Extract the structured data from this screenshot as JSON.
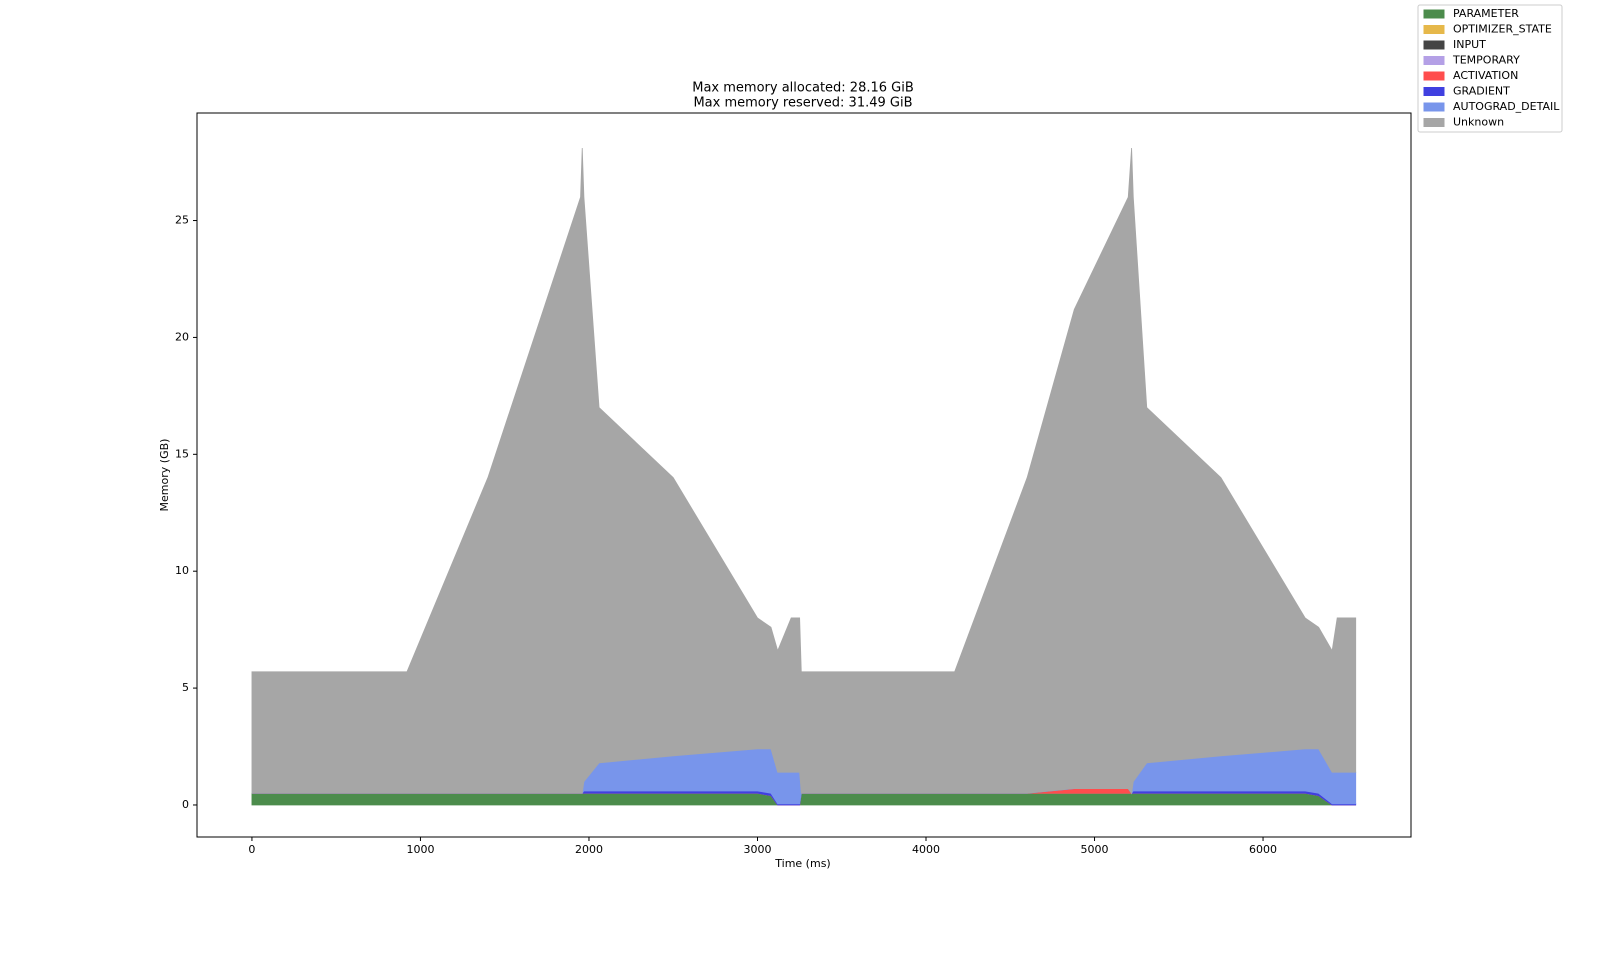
{
  "chart_data": {
    "type": "stacked-area",
    "title": "Max memory allocated: 28.16 GiB",
    "subtitle": "Max memory reserved: 31.49 GiB",
    "x_label": "Time (ms)",
    "y_label": "Memory (GB)",
    "x": [
      0,
      920,
      1400,
      1950,
      1960,
      1970,
      2060,
      2500,
      3000,
      3080,
      3120,
      3200,
      3250,
      3260,
      4170,
      4600,
      4880,
      5200,
      5220,
      5230,
      5310,
      5750,
      6250,
      6330,
      6410,
      6440,
      6550
    ],
    "series": [
      {
        "name": "PARAMETER",
        "color": "#4c8c4c",
        "values": [
          0.5,
          0.5,
          0.5,
          0.5,
          0.5,
          0.5,
          0.5,
          0.5,
          0.5,
          0.4,
          0,
          0,
          0,
          0.5,
          0.5,
          0.5,
          0.5,
          0.5,
          0.5,
          0.5,
          0.5,
          0.5,
          0.5,
          0.4,
          0,
          0,
          0
        ]
      },
      {
        "name": "OPTIMIZER_STATE",
        "color": "#e6b84a",
        "values": [
          0,
          0,
          0,
          0,
          0,
          0,
          0,
          0,
          0,
          0,
          0,
          0,
          0,
          0,
          0,
          0,
          0,
          0,
          0,
          0,
          0,
          0,
          0,
          0,
          0,
          0,
          0
        ]
      },
      {
        "name": "INPUT",
        "color": "#444444",
        "values": [
          0,
          0,
          0,
          0,
          0,
          0,
          0,
          0,
          0,
          0,
          0,
          0,
          0,
          0,
          0,
          0,
          0,
          0,
          0,
          0,
          0,
          0,
          0,
          0,
          0,
          0,
          0
        ]
      },
      {
        "name": "TEMPORARY",
        "color": "#b4a0e6",
        "values": [
          0,
          0,
          0,
          0,
          0,
          0,
          0,
          0,
          0,
          0,
          0,
          0,
          0,
          0,
          0,
          0,
          0,
          0,
          0,
          0,
          0,
          0,
          0,
          0,
          0,
          0,
          0
        ]
      },
      {
        "name": "ACTIVATION",
        "color": "#ff4d4d",
        "values": [
          0,
          0,
          0,
          0,
          0,
          0,
          0,
          0,
          0,
          0,
          0,
          0,
          0,
          0,
          0,
          0,
          0.2,
          0.2,
          0,
          0,
          0,
          0,
          0,
          0,
          0,
          0,
          0
        ]
      },
      {
        "name": "GRADIENT",
        "color": "#4040e0",
        "values": [
          0,
          0,
          0,
          0,
          0,
          0.1,
          0.1,
          0.1,
          0.1,
          0.1,
          0.05,
          0.05,
          0.05,
          0,
          0,
          0,
          0,
          0,
          0,
          0.1,
          0.1,
          0.1,
          0.1,
          0.1,
          0.05,
          0.05,
          0.05
        ]
      },
      {
        "name": "AUTOGRAD_DETAIL",
        "color": "#7895eb",
        "values": [
          0,
          0,
          0,
          0,
          0,
          0.4,
          1.2,
          1.5,
          1.8,
          1.9,
          1.35,
          1.35,
          1.35,
          0,
          0,
          0,
          0,
          0,
          0,
          0.4,
          1.2,
          1.5,
          1.8,
          1.9,
          1.35,
          1.35,
          1.35
        ]
      },
      {
        "name": "Unknown",
        "color": "#a6a6a6",
        "values": [
          5.2,
          5.2,
          13.5,
          25.5,
          27.6,
          25,
          15.2,
          11.9,
          5.6,
          5.2,
          5.2,
          6.6,
          6.6,
          5.2,
          5.2,
          13.5,
          20.5,
          25.3,
          27.6,
          25,
          15.2,
          11.9,
          5.6,
          5.2,
          5.2,
          6.6,
          6.6
        ]
      }
    ],
    "xlim": [
      -326,
      6878
    ],
    "ylim": [
      -1.37,
      29.6
    ],
    "xticks": [
      0,
      1000,
      2000,
      3000,
      4000,
      5000,
      6000
    ],
    "yticks": [
      0,
      5,
      10,
      15,
      20,
      25
    ],
    "legend": "outside-top-right"
  }
}
